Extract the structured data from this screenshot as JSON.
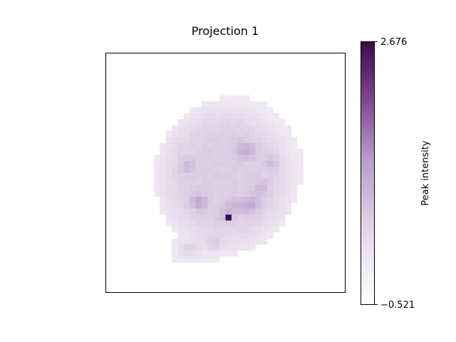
{
  "chart_data": {
    "type": "heatmap",
    "title": "Projection 1",
    "colorbar": {
      "label": "Peak intensity",
      "min": -0.521,
      "max": 2.676,
      "tick_labels": [
        "2.676",
        "−0.521"
      ],
      "colormap": "white-to-purple",
      "colors": [
        "#ffffff",
        "#e7dcec",
        "#b99ccb",
        "#7a3f8f",
        "#3f0a4c"
      ]
    },
    "axes": {
      "xticks": "none",
      "yticks": "none",
      "grid": false
    },
    "grid_size": [
      40,
      40
    ],
    "peak_value": 2.676,
    "peak_cell": [
      20,
      27
    ]
  }
}
